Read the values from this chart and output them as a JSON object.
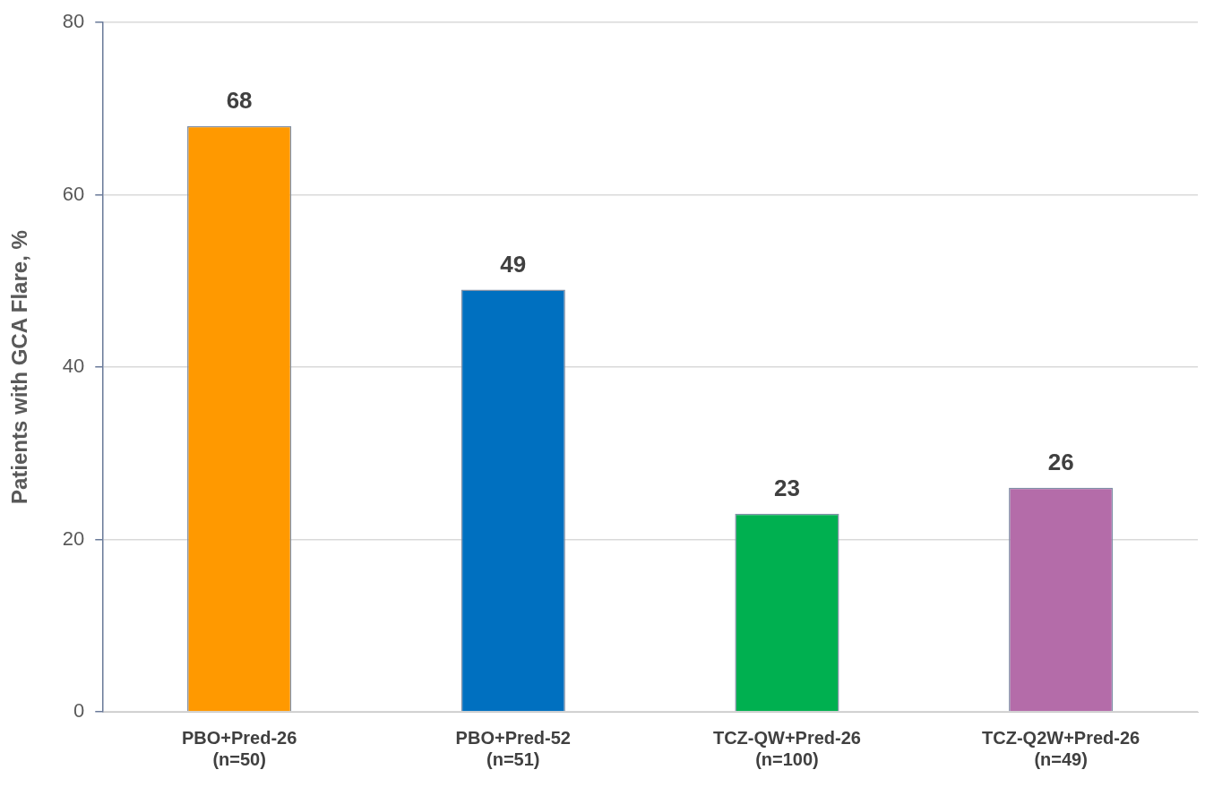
{
  "chart_data": {
    "type": "bar",
    "ylabel": "Patients with GCA Flare, %",
    "categories": [
      "PBO+Pred-26\n(n=50)",
      "PBO+Pred-52\n(n=51)",
      "TCZ-QW+Pred-26\n(n=100)",
      "TCZ-Q2W+Pred-26\n(n=49)"
    ],
    "values": [
      68,
      49,
      23,
      26
    ],
    "colors": [
      "#ff9900",
      "#0070c0",
      "#00b050",
      "#b46ca9"
    ],
    "ylim": [
      0,
      80
    ],
    "yticks": [
      0,
      20,
      40,
      60,
      80
    ],
    "grid": "y",
    "data_labels": true,
    "legend": false
  }
}
